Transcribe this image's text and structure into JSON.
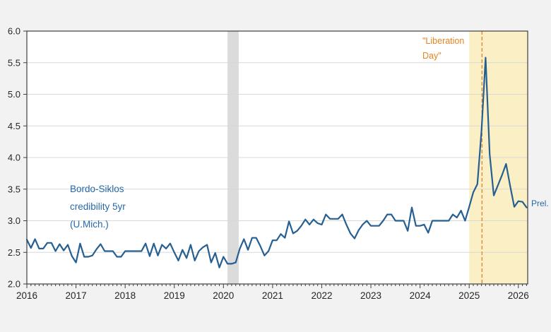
{
  "chart_data": {
    "type": "line",
    "title": "",
    "x_axis": {
      "min": 2016.0,
      "max": 2026.19,
      "tick_labels": [
        "2016",
        "2017",
        "2018",
        "2019",
        "2020",
        "2021",
        "2022",
        "2023",
        "2024",
        "2025",
        "2026"
      ],
      "tick_values": [
        2016,
        2017,
        2018,
        2019,
        2020,
        2021,
        2022,
        2023,
        2024,
        2025,
        2026
      ],
      "minor_tick_interval_years": 0.08333
    },
    "y_axis": {
      "min": 2.0,
      "max": 6.0,
      "tick_labels": [
        "2.0",
        "2.5",
        "3.0",
        "3.5",
        "4.0",
        "4.5",
        "5.0",
        "5.5",
        "6.0"
      ],
      "tick_values": [
        2.0,
        2.5,
        3.0,
        3.5,
        4.0,
        4.5,
        5.0,
        5.5,
        6.0
      ]
    },
    "grid": true,
    "legend_position": "none",
    "series": [
      {
        "name": "Bordo-Siklos credibility 5yr (U.Mich.)",
        "color": "#265F92",
        "start": "2016-01",
        "end": "2026-03",
        "frequency": "monthly",
        "values": [
          2.7,
          2.57,
          2.71,
          2.56,
          2.56,
          2.65,
          2.65,
          2.52,
          2.63,
          2.53,
          2.62,
          2.44,
          2.34,
          2.64,
          2.43,
          2.43,
          2.45,
          2.55,
          2.63,
          2.52,
          2.52,
          2.52,
          2.43,
          2.43,
          2.52,
          2.52,
          2.52,
          2.52,
          2.52,
          2.64,
          2.44,
          2.64,
          2.45,
          2.62,
          2.56,
          2.64,
          2.5,
          2.37,
          2.54,
          2.41,
          2.62,
          2.37,
          2.52,
          2.58,
          2.62,
          2.34,
          2.49,
          2.26,
          2.43,
          2.32,
          2.32,
          2.34,
          2.56,
          2.71,
          2.54,
          2.73,
          2.73,
          2.6,
          2.45,
          2.52,
          2.69,
          2.69,
          2.79,
          2.73,
          2.99,
          2.8,
          2.84,
          2.92,
          3.02,
          2.94,
          3.02,
          2.96,
          2.94,
          3.1,
          3.03,
          3.03,
          3.03,
          3.1,
          2.94,
          2.8,
          2.72,
          2.85,
          2.94,
          3.0,
          2.92,
          2.92,
          2.92,
          3.0,
          3.1,
          3.1,
          3.0,
          3.0,
          3.0,
          2.84,
          3.21,
          2.92,
          2.92,
          2.94,
          2.81,
          3.0,
          3.0,
          3.0,
          3.0,
          3.0,
          3.1,
          3.05,
          3.16,
          3.0,
          3.22,
          3.45,
          3.58,
          4.42,
          5.58,
          4.05,
          3.4,
          3.56,
          3.72,
          3.9,
          3.55,
          3.22,
          3.31,
          3.3,
          3.21
        ]
      }
    ],
    "bands": [
      {
        "name": "recession-band",
        "from": 2020.083,
        "to": 2020.31,
        "color": "#DBDBDB"
      },
      {
        "name": "policy-band",
        "from": 2025.0,
        "to": 2026.19,
        "color": "#FBF0C5"
      }
    ],
    "event_line": {
      "x": 2025.26,
      "color": "#E8821E",
      "style": "dashed",
      "label": "\"Liberation Day\""
    }
  },
  "annotations": {
    "series_label": {
      "line1": "Bordo-Siklos",
      "line2": "credibility 5yr",
      "line3": "(U.Mich.)",
      "color": "#2668A8"
    },
    "event_label": {
      "line1": "\"Liberation",
      "line2": "Day\"",
      "color": "#E8821E"
    },
    "prelim_label": {
      "text": "Prel.",
      "color": "#2668A8"
    }
  },
  "colors": {
    "figure_background": "#F2F2F2",
    "plot_background": "#FFFFFF",
    "gridline": "#D8D8D8",
    "plot_border": "#3F3F3F",
    "axis_text": "#262626",
    "line": "#265F92"
  }
}
